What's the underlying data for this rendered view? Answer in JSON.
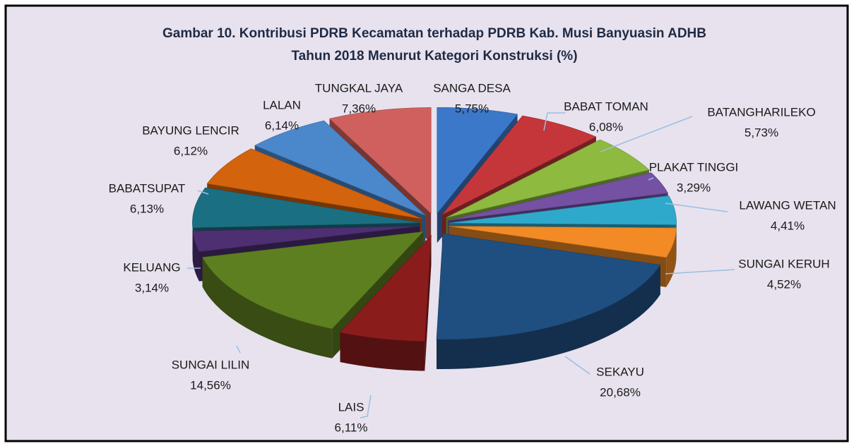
{
  "chart_data": {
    "type": "pie3d",
    "title": [
      "Gambar 10. Kontribusi  PDRB Kecamatan terhadap PDRB Kab. Musi Banyuasin ADHB",
      "Tahun 2018 Menurut Kategori Konstruksi  (%)"
    ],
    "categories": [
      "SANGA DESA",
      "BABAT TOMAN",
      "BATANGHARILEKO",
      "PLAKAT TINGGI",
      "LAWANG WETAN",
      "SUNGAI KERUH",
      "SEKAYU",
      "LAIS",
      "SUNGAI LILIN",
      "KELUANG",
      "BABATSUPAT",
      "BAYUNG LENCIR",
      "LALAN",
      "TUNGKAL JAYA"
    ],
    "values": [
      5.75,
      6.08,
      5.73,
      3.29,
      4.41,
      4.52,
      20.68,
      6.11,
      14.56,
      3.14,
      6.13,
      6.12,
      6.14,
      7.36
    ],
    "value_labels": [
      "5,75%",
      "6,08%",
      "5,73%",
      "3,29%",
      "4,41%",
      "4,52%",
      "20,68%",
      "6,11%",
      "14,56%",
      "3,14%",
      "6,13%",
      "6,12%",
      "6,14%",
      "7,36%"
    ],
    "colors": [
      "#3b78c9",
      "#c5363a",
      "#8dba3f",
      "#7451a3",
      "#2fa9cb",
      "#f28a25",
      "#1f4f80",
      "#8b1c1c",
      "#5e7f20",
      "#4d2f72",
      "#1b6f82",
      "#d4630d",
      "#4b87cb",
      "#d0605e"
    ]
  }
}
